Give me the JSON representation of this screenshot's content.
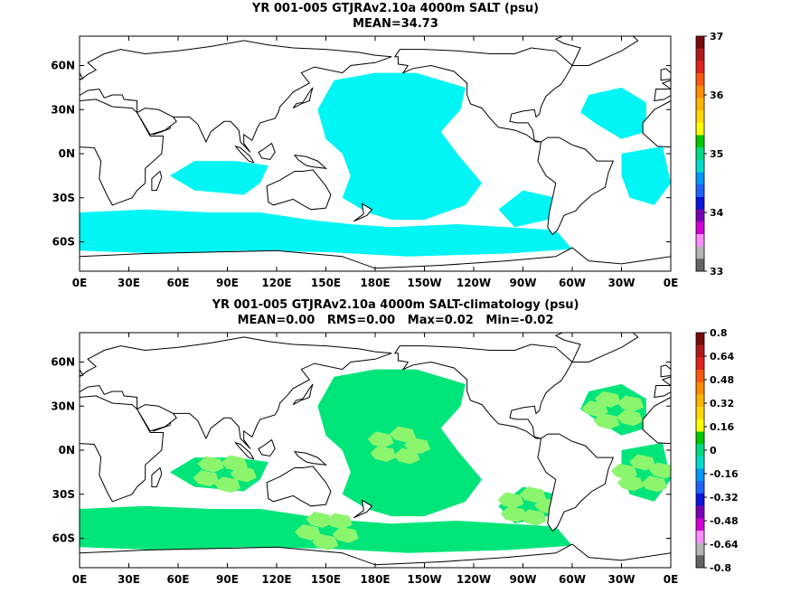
{
  "panels": [
    {
      "title": "YR 001-005 GTJRAv2.10a 4000m SALT (psu)",
      "subtitle": "MEAN=34.73",
      "fill_color": "#00f5f5",
      "colorbar": {
        "colors": [
          "#7a0a0a",
          "#b0191c",
          "#e1231f",
          "#ff5a0f",
          "#ff8c00",
          "#ffb400",
          "#ffd700",
          "#ffff00",
          "#00c800",
          "#00dc82",
          "#00dcc8",
          "#0096ff",
          "#1e64ff",
          "#0a14dc",
          "#7800b4",
          "#d200d2",
          "#ff8cff",
          "#b4b4b4",
          "#646464"
        ],
        "labels": [
          {
            "text": "37",
            "frac": 0.0
          },
          {
            "text": "36",
            "frac": 0.25
          },
          {
            "text": "35",
            "frac": 0.5
          },
          {
            "text": "34",
            "frac": 0.75
          },
          {
            "text": "33",
            "frac": 1.0
          }
        ]
      }
    },
    {
      "title": "YR 001-005 GTJRAv2.10a 4000m SALT-climatology (psu)",
      "subtitle": "MEAN=0.00   RMS=0.00   Max=0.02   Min=-0.02",
      "fill_color": "#00e57a",
      "fill_color2": "#8cf56e",
      "colorbar": {
        "colors": [
          "#7a0a0a",
          "#b0191c",
          "#e1231f",
          "#ff5a0f",
          "#ff8c00",
          "#ffb400",
          "#ffd700",
          "#ffff00",
          "#00c800",
          "#00dc82",
          "#00dcc8",
          "#0096ff",
          "#1e64ff",
          "#0a14dc",
          "#7800b4",
          "#d200d2",
          "#ff8cff",
          "#b4b4b4",
          "#646464"
        ],
        "labels": [
          {
            "text": "0.8",
            "frac": 0.0
          },
          {
            "text": "0.64",
            "frac": 0.1
          },
          {
            "text": "0.48",
            "frac": 0.2
          },
          {
            "text": "0.32",
            "frac": 0.3
          },
          {
            "text": "0.16",
            "frac": 0.4
          },
          {
            "text": "0",
            "frac": 0.5
          },
          {
            "text": "-0.16",
            "frac": 0.6
          },
          {
            "text": "-0.32",
            "frac": 0.7
          },
          {
            "text": "-0.48",
            "frac": 0.8
          },
          {
            "text": "-0.64",
            "frac": 0.9
          },
          {
            "text": "-0.8",
            "frac": 1.0
          }
        ]
      }
    }
  ],
  "x_ticks": [
    "0E",
    "30E",
    "60E",
    "90E",
    "120E",
    "150E",
    "180E",
    "150W",
    "120W",
    "90W",
    "60W",
    "30W",
    "0E"
  ],
  "y_ticks": [
    {
      "text": "60N",
      "lat": 60
    },
    {
      "text": "30N",
      "lat": 30
    },
    {
      "text": "0N",
      "lat": 0
    },
    {
      "text": "30S",
      "lat": -30
    },
    {
      "text": "60S",
      "lat": -60
    }
  ]
}
